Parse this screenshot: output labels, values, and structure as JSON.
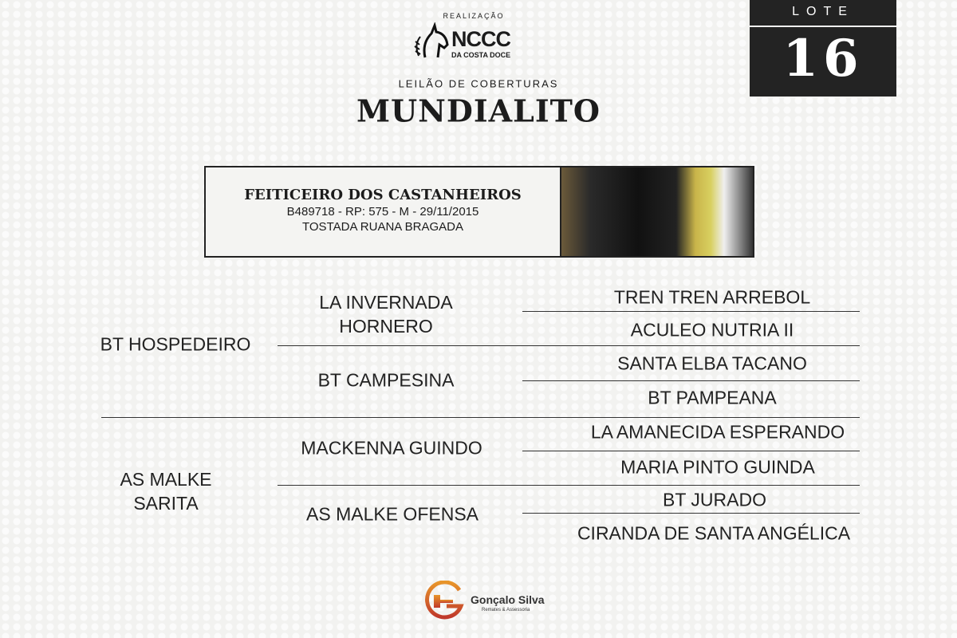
{
  "header": {
    "realizacao": "REALIZAÇÃO",
    "logo_text": "NCCC",
    "logo_sub": "DA COSTA DOCE",
    "subtitle": "LEILÃO DE COBERTURAS",
    "title": "MUNDIALITO"
  },
  "lot": {
    "label": "LOTE",
    "number": "16"
  },
  "horse": {
    "name": "FEITICEIRO DOS CASTANHEIROS",
    "registry": "B489718 - RP: 575 - M - 29/11/2015",
    "coat": "TOSTADA RUANA BRAGADA"
  },
  "pedigree": {
    "sire": "BT HOSPEDEIRO",
    "sire_sire": "LA INVERNADA HORNERO",
    "sire_dam": "BT CAMPESINA",
    "dam": "AS MALKE SARITA",
    "dam_sire": "MACKENNA GUINDO",
    "dam_dam": "AS MALKE OFENSA",
    "gen3": [
      "TREN TREN ARREBOL",
      "ACULEO NUTRIA II",
      "SANTA ELBA TACANO",
      "BT PAMPEANA",
      "LA AMANECIDA ESPERANDO",
      "MARIA PINTO GUINDA",
      "BT JURADO",
      "CIRANDA DE SANTA ANGÉLICA"
    ]
  },
  "footer": {
    "name": "Gonçalo Silva",
    "tagline": "Remates & Assessoria"
  },
  "colors": {
    "dark": "#232323",
    "accent_orange": "#e8952a",
    "accent_red": "#c0392b"
  }
}
